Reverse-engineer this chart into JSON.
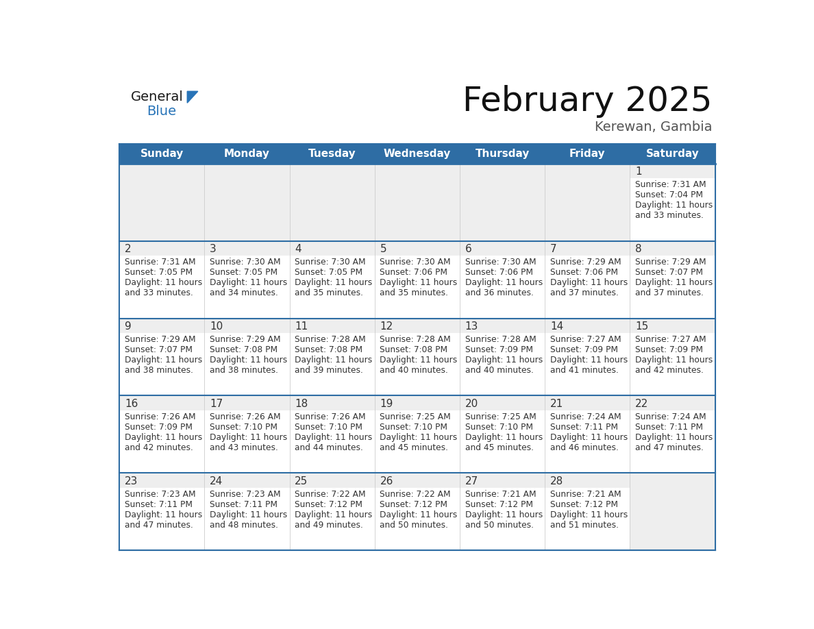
{
  "title": "February 2025",
  "subtitle": "Kerewan, Gambia",
  "header_bg": "#2E6DA4",
  "header_text_color": "#FFFFFF",
  "cell_bg": "#FFFFFF",
  "cell_day_strip_bg": "#EEEEEE",
  "empty_cell_bg": "#EEEEEE",
  "cell_border_color": "#2E6DA4",
  "day_number_color": "#333333",
  "cell_text_color": "#333333",
  "days_of_week": [
    "Sunday",
    "Monday",
    "Tuesday",
    "Wednesday",
    "Thursday",
    "Friday",
    "Saturday"
  ],
  "logo_general_color": "#1a1a1a",
  "logo_blue_color": "#2874B8",
  "calendar_data": [
    [
      null,
      null,
      null,
      null,
      null,
      null,
      {
        "day": 1,
        "sunrise": "7:31 AM",
        "sunset": "7:04 PM",
        "daylight": "11 hours\nand 33 minutes."
      }
    ],
    [
      {
        "day": 2,
        "sunrise": "7:31 AM",
        "sunset": "7:05 PM",
        "daylight": "11 hours\nand 33 minutes."
      },
      {
        "day": 3,
        "sunrise": "7:30 AM",
        "sunset": "7:05 PM",
        "daylight": "11 hours\nand 34 minutes."
      },
      {
        "day": 4,
        "sunrise": "7:30 AM",
        "sunset": "7:05 PM",
        "daylight": "11 hours\nand 35 minutes."
      },
      {
        "day": 5,
        "sunrise": "7:30 AM",
        "sunset": "7:06 PM",
        "daylight": "11 hours\nand 35 minutes."
      },
      {
        "day": 6,
        "sunrise": "7:30 AM",
        "sunset": "7:06 PM",
        "daylight": "11 hours\nand 36 minutes."
      },
      {
        "day": 7,
        "sunrise": "7:29 AM",
        "sunset": "7:06 PM",
        "daylight": "11 hours\nand 37 minutes."
      },
      {
        "day": 8,
        "sunrise": "7:29 AM",
        "sunset": "7:07 PM",
        "daylight": "11 hours\nand 37 minutes."
      }
    ],
    [
      {
        "day": 9,
        "sunrise": "7:29 AM",
        "sunset": "7:07 PM",
        "daylight": "11 hours\nand 38 minutes."
      },
      {
        "day": 10,
        "sunrise": "7:29 AM",
        "sunset": "7:08 PM",
        "daylight": "11 hours\nand 38 minutes."
      },
      {
        "day": 11,
        "sunrise": "7:28 AM",
        "sunset": "7:08 PM",
        "daylight": "11 hours\nand 39 minutes."
      },
      {
        "day": 12,
        "sunrise": "7:28 AM",
        "sunset": "7:08 PM",
        "daylight": "11 hours\nand 40 minutes."
      },
      {
        "day": 13,
        "sunrise": "7:28 AM",
        "sunset": "7:09 PM",
        "daylight": "11 hours\nand 40 minutes."
      },
      {
        "day": 14,
        "sunrise": "7:27 AM",
        "sunset": "7:09 PM",
        "daylight": "11 hours\nand 41 minutes."
      },
      {
        "day": 15,
        "sunrise": "7:27 AM",
        "sunset": "7:09 PM",
        "daylight": "11 hours\nand 42 minutes."
      }
    ],
    [
      {
        "day": 16,
        "sunrise": "7:26 AM",
        "sunset": "7:09 PM",
        "daylight": "11 hours\nand 42 minutes."
      },
      {
        "day": 17,
        "sunrise": "7:26 AM",
        "sunset": "7:10 PM",
        "daylight": "11 hours\nand 43 minutes."
      },
      {
        "day": 18,
        "sunrise": "7:26 AM",
        "sunset": "7:10 PM",
        "daylight": "11 hours\nand 44 minutes."
      },
      {
        "day": 19,
        "sunrise": "7:25 AM",
        "sunset": "7:10 PM",
        "daylight": "11 hours\nand 45 minutes."
      },
      {
        "day": 20,
        "sunrise": "7:25 AM",
        "sunset": "7:10 PM",
        "daylight": "11 hours\nand 45 minutes."
      },
      {
        "day": 21,
        "sunrise": "7:24 AM",
        "sunset": "7:11 PM",
        "daylight": "11 hours\nand 46 minutes."
      },
      {
        "day": 22,
        "sunrise": "7:24 AM",
        "sunset": "7:11 PM",
        "daylight": "11 hours\nand 47 minutes."
      }
    ],
    [
      {
        "day": 23,
        "sunrise": "7:23 AM",
        "sunset": "7:11 PM",
        "daylight": "11 hours\nand 47 minutes."
      },
      {
        "day": 24,
        "sunrise": "7:23 AM",
        "sunset": "7:11 PM",
        "daylight": "11 hours\nand 48 minutes."
      },
      {
        "day": 25,
        "sunrise": "7:22 AM",
        "sunset": "7:12 PM",
        "daylight": "11 hours\nand 49 minutes."
      },
      {
        "day": 26,
        "sunrise": "7:22 AM",
        "sunset": "7:12 PM",
        "daylight": "11 hours\nand 50 minutes."
      },
      {
        "day": 27,
        "sunrise": "7:21 AM",
        "sunset": "7:12 PM",
        "daylight": "11 hours\nand 50 minutes."
      },
      {
        "day": 28,
        "sunrise": "7:21 AM",
        "sunset": "7:12 PM",
        "daylight": "11 hours\nand 51 minutes."
      },
      null
    ]
  ]
}
